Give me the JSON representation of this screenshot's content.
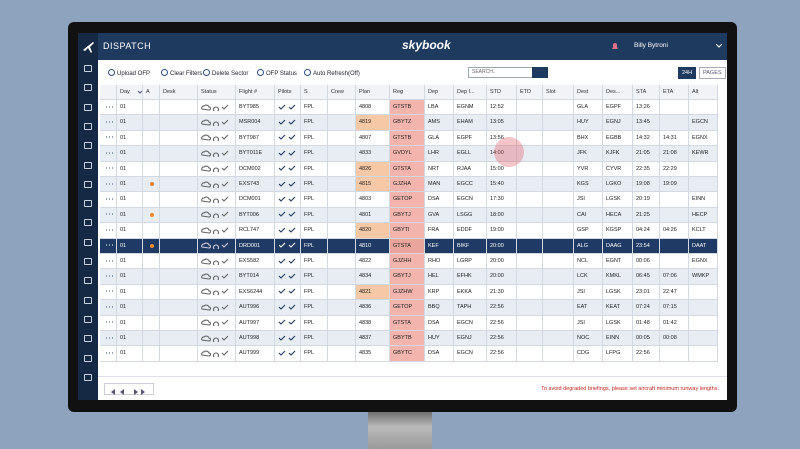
{
  "header": {
    "title": "DISPATCH",
    "logo": "skybook",
    "user": "Billy Bytroni"
  },
  "toolbar": {
    "buttons": [
      "Upload OFP",
      "Clear Filters",
      "Delete Sector",
      "OFP Status",
      "Auto Refresh(Off)"
    ],
    "search": "SEARCH..",
    "view_buttons": [
      "24H",
      "PAGES"
    ]
  },
  "table": {
    "columns": [
      {
        "key": "day",
        "label": "Day"
      },
      {
        "key": "a",
        "label": "A"
      },
      {
        "key": "desk",
        "label": "Desk"
      },
      {
        "key": "status",
        "label": "Status"
      },
      {
        "key": "flight",
        "label": "Flight #"
      },
      {
        "key": "pilots",
        "label": "Pilots"
      },
      {
        "key": "s",
        "label": "S"
      },
      {
        "key": "crew",
        "label": "Crew"
      },
      {
        "key": "plan",
        "label": "Plan"
      },
      {
        "key": "reg",
        "label": "Reg"
      },
      {
        "key": "dep",
        "label": "Dep"
      },
      {
        "key": "dep_icao",
        "label": "Dep I..."
      },
      {
        "key": "std",
        "label": "STD"
      },
      {
        "key": "etd",
        "label": "ETD"
      },
      {
        "key": "slot",
        "label": "Slot"
      },
      {
        "key": "dest",
        "label": "Dest"
      },
      {
        "key": "dest_icao",
        "label": "Des..."
      },
      {
        "key": "sta",
        "label": "STA"
      },
      {
        "key": "eta",
        "label": "ETA"
      },
      {
        "key": "alt",
        "label": "Alt"
      }
    ],
    "rows": [
      {
        "day": "01",
        "flight": "BYT985",
        "s": "FPL",
        "plan": "4808",
        "reg": "GTSTB",
        "dep": "LBA",
        "dep_icao": "EGNM",
        "std": "12:52",
        "dest": "GLA",
        "dest_icao": "EGPF",
        "sta": "13:26"
      },
      {
        "day": "01",
        "flight": "MSR004",
        "s": "FPL",
        "plan": "4819",
        "reg": "GBYTZ",
        "dep": "AMS",
        "dep_icao": "EHAM",
        "std": "13:05",
        "dest": "HUY",
        "dest_icao": "EGNJ",
        "sta": "13:45",
        "alt": "EGCN"
      },
      {
        "day": "01",
        "flight": "BYT987",
        "s": "FPL",
        "plan": "4807",
        "reg": "GTSTB",
        "dep": "GLA",
        "dep_icao": "EGPF",
        "std": "13:56",
        "dest": "BHX",
        "dest_icao": "EGBB",
        "sta": "14:32",
        "eta": "14:31",
        "alt": "EGNX"
      },
      {
        "day": "01",
        "flight": "BYT011E",
        "s": "FPL",
        "plan": "4833",
        "reg": "GVDYL",
        "dep": "LHR",
        "dep_icao": "EGLL",
        "std": "14:00",
        "dest": "JFK",
        "dest_icao": "KJFK",
        "sta": "21:05",
        "eta": "21:08",
        "alt": "KEWR"
      },
      {
        "day": "01",
        "flight": "DCM002",
        "s": "FPL",
        "plan": "4826",
        "reg": "GTSTA",
        "dep": "NRT",
        "dep_icao": "RJAA",
        "std": "15:00",
        "dest": "YVR",
        "dest_icao": "CYVR",
        "sta": "22:35",
        "eta": "22:29"
      },
      {
        "day": "01",
        "flight": "EXS743",
        "s": "FPL",
        "plan": "4815",
        "reg": "GJZHA",
        "dep": "MAN",
        "dep_icao": "EGCC",
        "std": "15:40",
        "dest": "KGS",
        "dest_icao": "LGKO",
        "sta": "19:08",
        "eta": "19:09"
      },
      {
        "day": "01",
        "flight": "DCM001",
        "s": "FPL",
        "plan": "4803",
        "reg": "GETOP",
        "dep": "DSA",
        "dep_icao": "EGCN",
        "std": "17:30",
        "dest": "JSI",
        "dest_icao": "LGSK",
        "sta": "20:19",
        "alt": "EINN"
      },
      {
        "day": "01",
        "flight": "BYT006",
        "s": "FPL",
        "plan": "4801",
        "reg": "GBYTJ",
        "dep": "GVA",
        "dep_icao": "LSGG",
        "std": "18:00",
        "dest": "CAI",
        "dest_icao": "HECA",
        "sta": "21:25",
        "alt": "HECP"
      },
      {
        "day": "01",
        "flight": "RCL747",
        "s": "FPL",
        "plan": "4820",
        "reg": "GBYTI",
        "dep": "FRA",
        "dep_icao": "EDDF",
        "std": "19:00",
        "dest": "GSP",
        "dest_icao": "KGSP",
        "sta": "04:24",
        "eta": "04:26",
        "alt": "KCLT"
      },
      {
        "day": "01",
        "flight": "DRD001",
        "s": "FPL",
        "plan": "4810",
        "reg": "GTSTA",
        "dep": "KEF",
        "dep_icao": "BIKF",
        "std": "20:00",
        "dest": "ALG",
        "dest_icao": "DAAG",
        "sta": "23:54",
        "alt": "DAAT"
      },
      {
        "day": "01",
        "flight": "EXS582",
        "s": "FPL",
        "plan": "4822",
        "reg": "GJZHH",
        "dep": "RHO",
        "dep_icao": "LGRP",
        "std": "20:00",
        "dest": "NCL",
        "dest_icao": "EGNT",
        "sta": "00:06",
        "alt": "EGNX"
      },
      {
        "day": "01",
        "flight": "BYT014",
        "s": "FPL",
        "plan": "4834",
        "reg": "GBYTJ",
        "dep": "HEL",
        "dep_icao": "EFHK",
        "std": "20:00",
        "dest": "LCK",
        "dest_icao": "KMKL",
        "sta": "06:45",
        "eta": "07:06",
        "alt": "WMKP"
      },
      {
        "day": "01",
        "flight": "EXS6244",
        "s": "FPL",
        "plan": "4821",
        "reg": "GJZHW",
        "dep": "KRP",
        "dep_icao": "EKKA",
        "std": "21:30",
        "dest": "JSI",
        "dest_icao": "LGSK",
        "sta": "23:01",
        "eta": "22:47"
      },
      {
        "day": "01",
        "flight": "AUT996",
        "s": "FPL",
        "plan": "4836",
        "reg": "GETOP",
        "dep": "BBQ",
        "dep_icao": "TAPH",
        "std": "22:56",
        "dest": "EAT",
        "dest_icao": "KEAT",
        "sta": "07:24",
        "eta": "07:15"
      },
      {
        "day": "01",
        "flight": "AUT997",
        "s": "FPL",
        "plan": "4838",
        "reg": "GTSTA",
        "dep": "DSA",
        "dep_icao": "EGCN",
        "std": "22:56",
        "dest": "JSI",
        "dest_icao": "LGSK",
        "sta": "01:48",
        "eta": "01:42"
      },
      {
        "day": "01",
        "flight": "AUT998",
        "s": "FPL",
        "plan": "4837",
        "reg": "GBYTB",
        "dep": "HUY",
        "dep_icao": "EGNJ",
        "std": "22:56",
        "dest": "NOC",
        "dest_icao": "EINN",
        "sta": "00:05",
        "eta": "00:08"
      },
      {
        "day": "01",
        "flight": "AUT999",
        "s": "FPL",
        "plan": "4835",
        "reg": "GBYTC",
        "dep": "DSA",
        "dep_icao": "EGCN",
        "std": "22:56",
        "dest": "CDG",
        "dest_icao": "LFPG",
        "sta": "22:56"
      }
    ],
    "selected_row": 9,
    "plan_alert_rows": [
      1,
      4,
      5,
      8,
      12
    ],
    "dot_rows": [
      5,
      7,
      9
    ]
  },
  "footer": {
    "warning": "To avoid degraded briefings, please set aircraft minimum runway lengths."
  }
}
